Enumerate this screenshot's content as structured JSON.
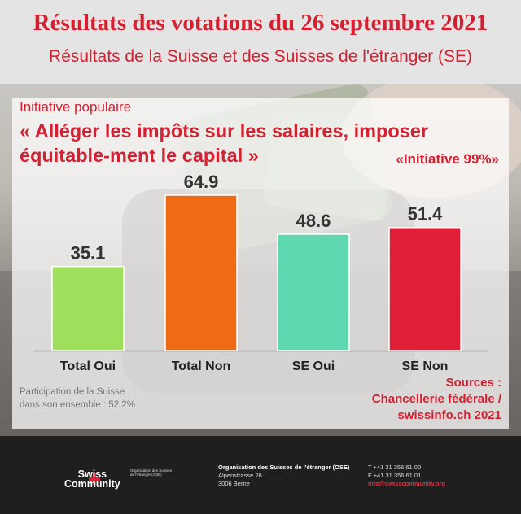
{
  "header": {
    "title": "Résultats des votations du 26 septembre 2021",
    "subtitle": "Résultats de la Suisse et des Suisses de l'étranger (SE)"
  },
  "initiative": {
    "kicker": "Initiative populaire",
    "headline": "« Alléger les impôts sur les salaires, imposer équitable-ment le capital »",
    "nickname": "«Initiative 99%»"
  },
  "chart_data": {
    "type": "bar",
    "categories": [
      "Total Oui",
      "Total Non",
      "SE Oui",
      "SE Non"
    ],
    "values": [
      35.1,
      64.9,
      48.6,
      51.4
    ],
    "value_labels": [
      "35.1",
      "64.9",
      "48.6",
      "51.4"
    ],
    "colors": [
      "#9ee05c",
      "#f06a14",
      "#5ed8b0",
      "#e01f36"
    ],
    "ylim": [
      0,
      70
    ],
    "grid": false,
    "legend": "none"
  },
  "notes": {
    "participation_line1": "Participation de la Suisse",
    "participation_line2": "dans son ensemble : 52.2%",
    "sources_line1": "Sources :",
    "sources_line2": "Chancellerie fédérale /",
    "sources_line3": "swissinfo.ch 2021"
  },
  "footer": {
    "logo_line1": "Swiss",
    "logo_line2": "Community",
    "logo_org_line1": "Organisation des Suisses",
    "logo_org_line2": "de l'étranger (OSE)",
    "org_name": "Organisation des Suisses de l'étranger (OSE)",
    "street": "Alpenstrasse 26",
    "city": "3006 Berne",
    "phone": "T +41 31 356 61 00",
    "fax": "F +41 31 356 61 01",
    "email": "info@swisscommunity.org"
  }
}
